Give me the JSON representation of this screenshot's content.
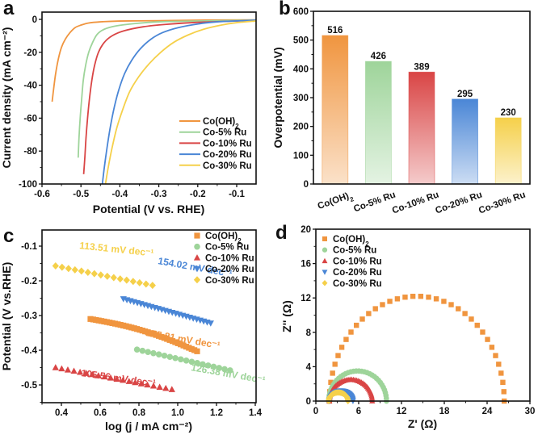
{
  "colors": {
    "Co(OH)2": "#F0953F",
    "Co-5% Ru": "#9ED49A",
    "Co-10% Ru": "#D94545",
    "Co-20% Ru": "#4A86D6",
    "Co-30% Ru": "#F5D04A"
  },
  "chart_data": [
    {
      "panel": "a",
      "type": "line",
      "xlabel": "Potential (V vs. RHE)",
      "ylabel": "Current density (mA cm⁻²)",
      "xlim": [
        -0.6,
        -0.05
      ],
      "ylim": [
        -100,
        5
      ],
      "xticks": [
        -0.6,
        -0.5,
        -0.4,
        -0.3,
        -0.2,
        -0.1
      ],
      "yticks": [
        0,
        -20,
        -40,
        -60,
        -80,
        -100
      ],
      "legend": "bottom-right",
      "series": [
        {
          "name": "Co(OH)2",
          "x": [
            -0.574,
            -0.57,
            -0.565,
            -0.558,
            -0.55,
            -0.54,
            -0.528,
            -0.515,
            -0.5,
            -0.48,
            -0.45,
            -0.4,
            -0.3,
            -0.2,
            -0.05
          ],
          "y": [
            -50,
            -42,
            -33,
            -24,
            -17,
            -12,
            -8,
            -5,
            -3.5,
            -2.2,
            -1.5,
            -1,
            -0.8,
            -0.5,
            -0.3
          ]
        },
        {
          "name": "Co-5% Ru",
          "x": [
            -0.507,
            -0.505,
            -0.502,
            -0.498,
            -0.494,
            -0.488,
            -0.48,
            -0.47,
            -0.458,
            -0.44,
            -0.41,
            -0.36,
            -0.3,
            -0.2,
            -0.05
          ],
          "y": [
            -84,
            -72,
            -60,
            -48,
            -37,
            -28,
            -20,
            -14,
            -9,
            -6,
            -4,
            -2.5,
            -1.5,
            -1,
            -0.5
          ]
        },
        {
          "name": "Co-10% Ru",
          "x": [
            -0.493,
            -0.49,
            -0.487,
            -0.483,
            -0.478,
            -0.472,
            -0.465,
            -0.455,
            -0.44,
            -0.42,
            -0.39,
            -0.34,
            -0.28,
            -0.2,
            -0.05
          ],
          "y": [
            -94,
            -84,
            -72,
            -60,
            -48,
            -37,
            -28,
            -20,
            -14,
            -10,
            -7,
            -4.5,
            -3,
            -1.8,
            -0.6
          ]
        },
        {
          "name": "Co-20% Ru",
          "x": [
            -0.445,
            -0.44,
            -0.433,
            -0.425,
            -0.415,
            -0.403,
            -0.388,
            -0.37,
            -0.348,
            -0.32,
            -0.29,
            -0.25,
            -0.2,
            -0.15,
            -0.05
          ],
          "y": [
            -100,
            -90,
            -78,
            -66,
            -54,
            -43,
            -33,
            -25,
            -18,
            -12,
            -8,
            -5,
            -2.8,
            -1.5,
            -0.5
          ]
        },
        {
          "name": "Co-30% Ru",
          "x": [
            -0.437,
            -0.43,
            -0.42,
            -0.408,
            -0.393,
            -0.375,
            -0.352,
            -0.325,
            -0.295,
            -0.262,
            -0.225,
            -0.185,
            -0.14,
            -0.1,
            -0.05
          ],
          "y": [
            -100,
            -90,
            -78,
            -66,
            -55,
            -44,
            -35,
            -27,
            -20,
            -14,
            -9.5,
            -6,
            -3.5,
            -2,
            -1
          ]
        }
      ]
    },
    {
      "panel": "b",
      "type": "bar",
      "ylabel": "Overpotential (mV)",
      "ylim": [
        0,
        600
      ],
      "yticks": [
        0,
        100,
        200,
        300,
        400,
        500,
        600
      ],
      "categories": [
        "Co(OH)2",
        "Co-5% Ru",
        "Co-10% Ru",
        "Co-20% Ru",
        "Co-30% Ru"
      ],
      "values": [
        516,
        426,
        389,
        295,
        230
      ]
    },
    {
      "panel": "c",
      "type": "scatter",
      "xlabel": "log (j / mA cm⁻²)",
      "ylabel": "Potential (V vs.RHE)",
      "xlim": [
        0.3,
        1.4
      ],
      "ylim": [
        -0.55,
        -0.05
      ],
      "xticks": [
        0.4,
        0.6,
        0.8,
        1.0,
        1.2,
        1.4
      ],
      "yticks": [
        -0.1,
        -0.2,
        -0.3,
        -0.4,
        -0.5
      ],
      "legend": "top-right",
      "series": [
        {
          "name": "Co(OH)2",
          "marker": "square",
          "x_range": [
            0.55,
            1.1
          ],
          "y_range": [
            -0.31,
            -0.403
          ],
          "n": 40,
          "annotation": "175.81 mV dec⁻¹"
        },
        {
          "name": "Co-5% Ru",
          "marker": "circle",
          "x_range": [
            0.79,
            1.27
          ],
          "y_range": [
            -0.398,
            -0.458
          ],
          "n": 18,
          "annotation": "126.38 mV dec⁻¹"
        },
        {
          "name": "Co-10% Ru",
          "marker": "triangle-up",
          "x_range": [
            0.37,
            0.97
          ],
          "y_range": [
            -0.45,
            -0.513
          ],
          "n": 20,
          "annotation": "105.56 mV dec⁻¹"
        },
        {
          "name": "Co-20% Ru",
          "marker": "triangle-down",
          "x_range": [
            0.72,
            1.17
          ],
          "y_range": [
            -0.252,
            -0.322
          ],
          "n": 26,
          "annotation": "154.02 mV dec⁻¹"
        },
        {
          "name": "Co-30% Ru",
          "marker": "diamond",
          "x_range": [
            0.37,
            0.87
          ],
          "y_range": [
            -0.157,
            -0.213
          ],
          "n": 16,
          "annotation": "113.51 mV dec⁻¹"
        }
      ]
    },
    {
      "panel": "d",
      "type": "scatter",
      "xlabel": "Z' (Ω)",
      "ylabel": "Z'' (Ω)",
      "xlim": [
        0,
        30
      ],
      "ylim": [
        0,
        20
      ],
      "xticks": [
        0,
        6,
        12,
        18,
        24,
        30
      ],
      "yticks": [
        0,
        4,
        8,
        12,
        16,
        20
      ],
      "legend": "top-left",
      "series": [
        {
          "name": "Co(OH)2",
          "marker": "square",
          "z_start": 1.9,
          "z_end": 26.4,
          "peak_imag": 12.2,
          "n": 36
        },
        {
          "name": "Co-5% Ru",
          "marker": "circle",
          "z_start": 1.8,
          "z_end": 9.9,
          "peak_imag": 3.5,
          "n": 34
        },
        {
          "name": "Co-10% Ru",
          "marker": "triangle-up",
          "z_start": 1.9,
          "z_end": 7.9,
          "peak_imag": 2.5,
          "n": 40
        },
        {
          "name": "Co-20% Ru",
          "marker": "triangle-down",
          "z_start": 1.9,
          "z_end": 5.2,
          "peak_imag": 1.2,
          "n": 40
        },
        {
          "name": "Co-30% Ru",
          "marker": "diamond",
          "z_start": 1.8,
          "z_end": 4.5,
          "peak_imag": 1.0,
          "n": 40
        }
      ]
    }
  ],
  "panel_labels": [
    "a",
    "b",
    "c",
    "d"
  ],
  "legend_labels": [
    "Co(OH)",
    "Co-5% Ru",
    "Co-10% Ru",
    "Co-20% Ru",
    "Co-30% Ru"
  ],
  "bar_category_labels": [
    "Co(OH)",
    "Co-5% Ru",
    "Co-10% Ru",
    "Co-20% Ru",
    "Co-30% Ru"
  ],
  "subscript_2": "2"
}
